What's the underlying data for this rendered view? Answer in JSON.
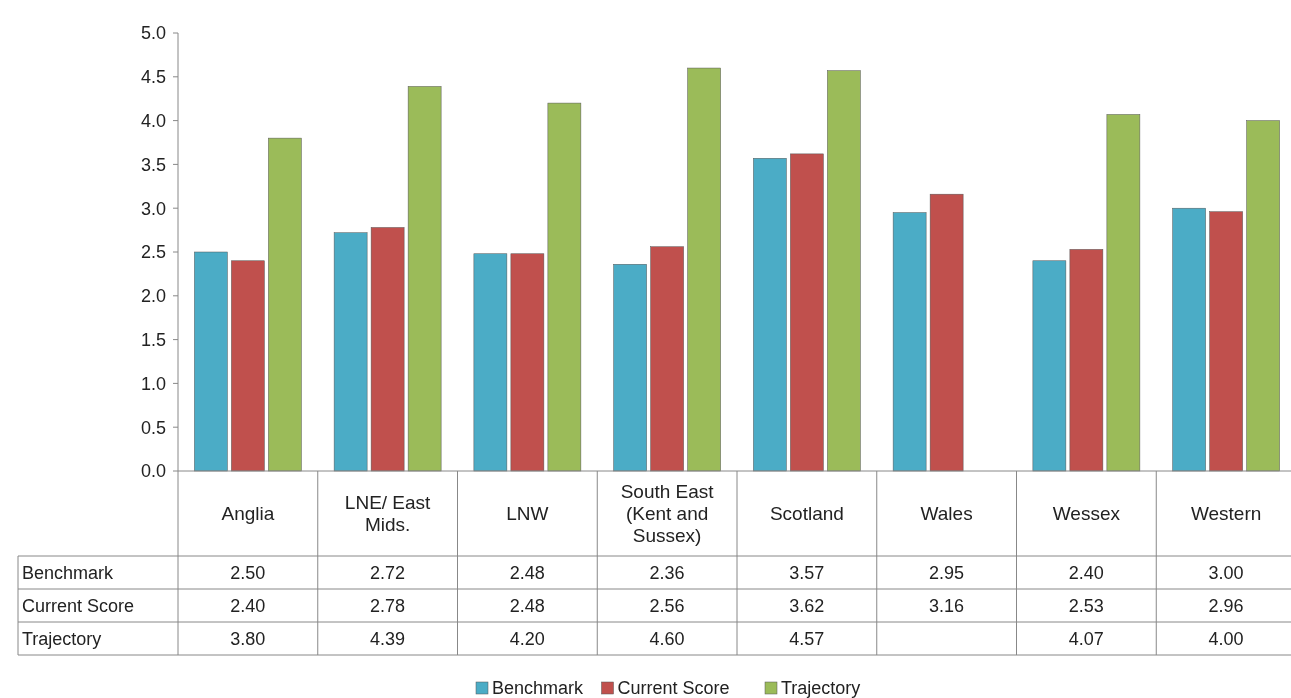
{
  "chart_data": {
    "type": "bar",
    "categories": [
      "Anglia",
      "LNE/ East Mids.",
      "LNW",
      "South East (Kent and Sussex)",
      "Scotland",
      "Wales",
      "Wessex",
      "Western"
    ],
    "series": [
      {
        "name": "Benchmark",
        "color": "#4bacc6",
        "values": [
          2.5,
          2.72,
          2.48,
          2.36,
          3.57,
          2.95,
          2.4,
          3.0
        ],
        "value_labels": [
          "2.50",
          "2.72",
          "2.48",
          "2.36",
          "3.57",
          "2.95",
          "2.40",
          "3.00"
        ]
      },
      {
        "name": "Current Score",
        "color": "#c0504d",
        "values": [
          2.4,
          2.78,
          2.48,
          2.56,
          3.62,
          3.16,
          2.53,
          2.96
        ],
        "value_labels": [
          "2.40",
          "2.78",
          "2.48",
          "2.56",
          "3.62",
          "3.16",
          "2.53",
          "2.96"
        ]
      },
      {
        "name": "Trajectory",
        "color": "#9bbb59",
        "values": [
          3.8,
          4.39,
          4.2,
          4.6,
          4.57,
          null,
          4.07,
          4.0
        ],
        "value_labels": [
          "3.80",
          "4.39",
          "4.20",
          "4.60",
          "4.57",
          null,
          "4.07",
          "4.00"
        ]
      }
    ],
    "ylim": [
      0,
      5
    ],
    "yticks": [
      {
        "value": 0,
        "label": "0.0"
      },
      {
        "value": 0.5,
        "label": "0.5"
      },
      {
        "value": 1,
        "label": "1.0"
      },
      {
        "value": 1.5,
        "label": "1.5"
      },
      {
        "value": 2,
        "label": "2.0"
      },
      {
        "value": 2.5,
        "label": "2.5"
      },
      {
        "value": 3,
        "label": "3.0"
      },
      {
        "value": 3.5,
        "label": "3.5"
      },
      {
        "value": 4,
        "label": "4.0"
      },
      {
        "value": 4.5,
        "label": "4.5"
      },
      {
        "value": 5,
        "label": "5.0"
      }
    ],
    "legend": "bottom"
  }
}
